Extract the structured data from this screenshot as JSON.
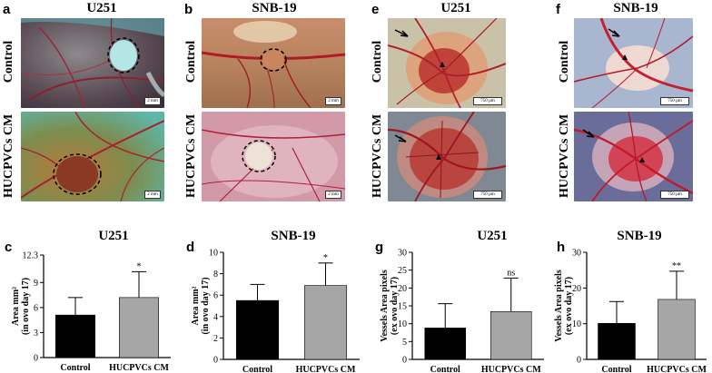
{
  "figure": {
    "top_panels": [
      {
        "label": "a",
        "title": "U251",
        "scale": "2 mm",
        "scale2": "2 mm",
        "palette": "green",
        "row_labels": [
          "Control",
          "HUCPVCs CM"
        ]
      },
      {
        "label": "b",
        "title": "SNB-19",
        "scale": "2 mm",
        "scale2": "2 mm",
        "palette": "pink",
        "row_labels": [
          "Control",
          "HUCPVCs CM"
        ]
      },
      {
        "label": "e",
        "title": "U251",
        "scale": "750 µm",
        "scale2": "750 µm",
        "palette": "beige",
        "row_labels": [
          "Control",
          "HUCPVCs CM"
        ]
      },
      {
        "label": "f",
        "title": "SNB-19",
        "scale": "750 µm",
        "scale2": "750 µm",
        "palette": "blue",
        "row_labels": [
          "Control",
          "HUCPVCs CM"
        ]
      }
    ]
  },
  "chart_data": [
    {
      "label": "c",
      "type": "bar",
      "title": "U251",
      "categories": [
        "Control",
        "HUCPVCs CM"
      ],
      "values": [
        5.1,
        7.2
      ],
      "errors": [
        2.1,
        3.1
      ],
      "significance": [
        "",
        "*"
      ],
      "ylabel": [
        "Area mm²",
        "(in ovo day 17)"
      ],
      "ylim": [
        0,
        12.3
      ],
      "yticks": [
        0,
        3,
        6,
        9,
        12.3
      ],
      "colors": [
        "#000000",
        "#a6a6a6"
      ]
    },
    {
      "label": "d",
      "type": "bar",
      "title": "SNB-19",
      "categories": [
        "Control",
        "HUCPVCs CM"
      ],
      "values": [
        5.5,
        6.9
      ],
      "errors": [
        1.5,
        2.1
      ],
      "significance": [
        "",
        "*"
      ],
      "ylabel": [
        "Area mm²",
        "(in ovo day 17)"
      ],
      "ylim": [
        0,
        10
      ],
      "yticks": [
        0,
        2,
        4,
        6,
        8,
        10
      ],
      "colors": [
        "#000000",
        "#a6a6a6"
      ]
    },
    {
      "label": "g",
      "type": "bar",
      "title": "U251",
      "categories": [
        "Control",
        "HUCPVCs CM"
      ],
      "values": [
        8.8,
        13.4
      ],
      "errors": [
        6.8,
        9.4
      ],
      "significance": [
        "",
        "ns"
      ],
      "ylabel": [
        "Vessels Area pixels",
        "(ex ovo day 17)"
      ],
      "ylim": [
        0,
        30
      ],
      "yticks": [
        0,
        5,
        10,
        15,
        20,
        25,
        30
      ],
      "colors": [
        "#000000",
        "#a6a6a6"
      ]
    },
    {
      "label": "h",
      "type": "bar",
      "title": "SNB-19",
      "categories": [
        "Control",
        "HUCPVCs CM"
      ],
      "values": [
        10.1,
        16.8
      ],
      "errors": [
        6.1,
        7.9
      ],
      "significance": [
        "",
        "**"
      ],
      "ylabel": [
        "Vessels Area pixels",
        "(ex ovo day 17)"
      ],
      "ylim": [
        0,
        30
      ],
      "yticks": [
        0,
        10,
        20,
        30
      ],
      "colors": [
        "#000000",
        "#a6a6a6"
      ]
    }
  ]
}
